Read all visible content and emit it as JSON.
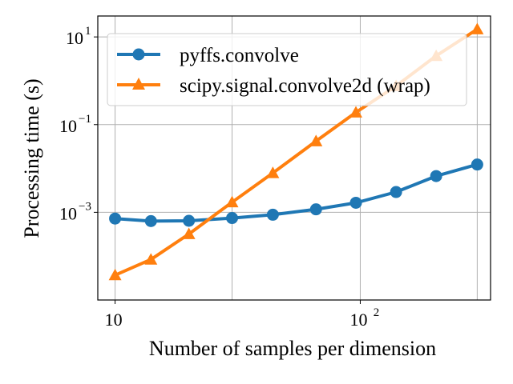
{
  "chart_data": {
    "type": "line",
    "xscale": "log",
    "yscale": "log",
    "xlabel": "Number of samples per dimension",
    "ylabel": "Processing time (s)",
    "xlim": [
      8.5,
      340
    ],
    "ylim": [
      1e-05,
      30
    ],
    "grid": true,
    "legend_position": "upper-left",
    "x_ticks": [
      {
        "value": 10,
        "base": "10",
        "exp": ""
      },
      {
        "value": 100,
        "base": "10",
        "exp": "2"
      }
    ],
    "y_ticks": [
      {
        "value": 0.001,
        "base": "10",
        "exp": "−3"
      },
      {
        "value": 0.1,
        "base": "10",
        "exp": "−1"
      },
      {
        "value": 10,
        "base": "10",
        "exp": "1"
      }
    ],
    "x_minor_grid": [
      30,
      300
    ],
    "series": [
      {
        "name": "pyffs.convolve",
        "color": "#1f77b4",
        "marker": "circle",
        "x": [
          10,
          14,
          20,
          30,
          44,
          66,
          96,
          140,
          204,
          300
        ],
        "y": [
          0.00072,
          0.00063,
          0.00064,
          0.00074,
          0.00088,
          0.00117,
          0.00165,
          0.0029,
          0.0067,
          0.0123
        ]
      },
      {
        "name": "scipy.signal.convolve2d (wrap)",
        "color": "#ff7f0e",
        "marker": "triangle",
        "x": [
          10,
          14,
          20,
          30,
          44,
          66,
          96,
          140,
          204,
          300
        ],
        "y": [
          3.7e-05,
          8.4e-05,
          0.00032,
          0.0017,
          0.0079,
          0.042,
          0.19,
          0.76,
          3.7,
          15
        ]
      }
    ]
  }
}
